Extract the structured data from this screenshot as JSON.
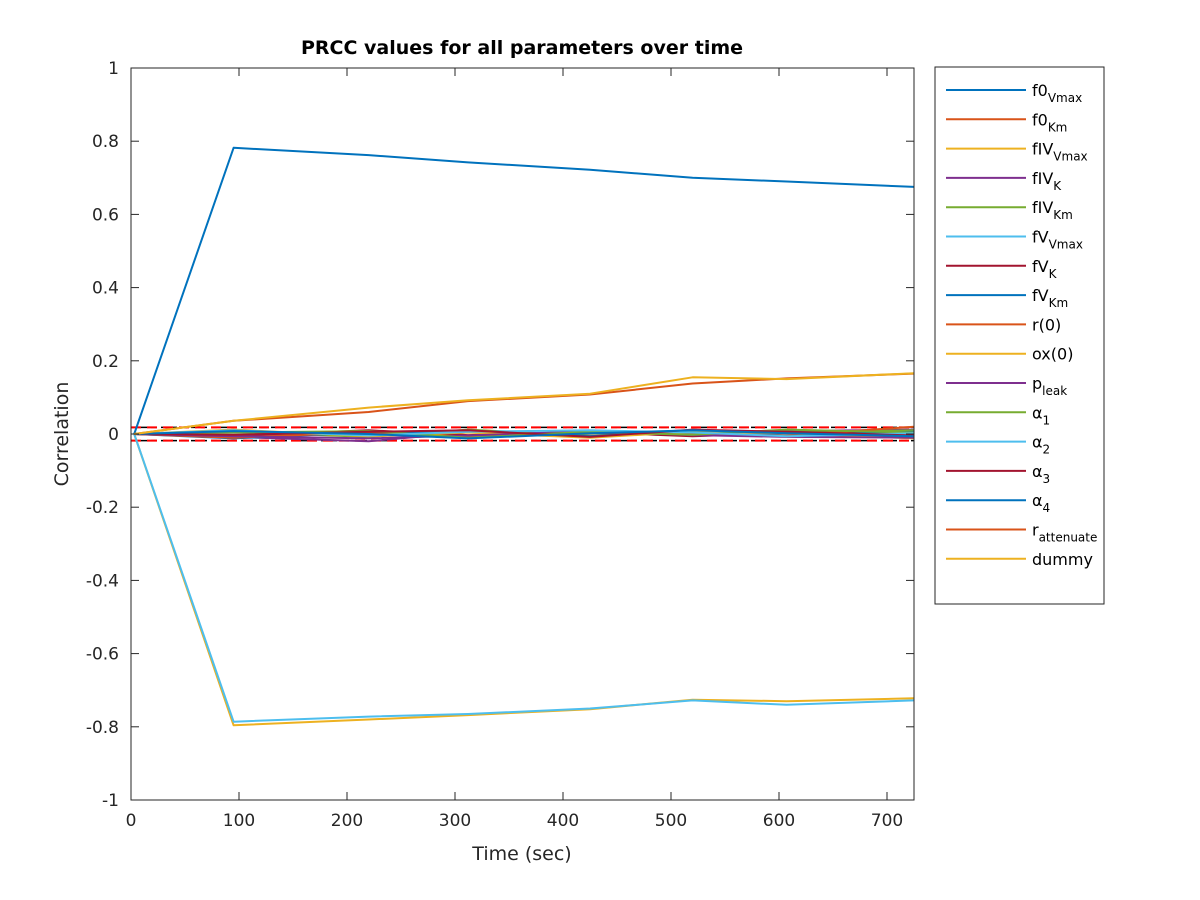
{
  "chart_data": {
    "type": "line",
    "title": "PRCC values for all parameters over time",
    "xlabel": "Time (sec)",
    "ylabel": "Correlation",
    "xlim": [
      0,
      725
    ],
    "ylim": [
      -1,
      1
    ],
    "xticks": [
      0,
      100,
      200,
      300,
      400,
      500,
      600,
      700
    ],
    "yticks": [
      -1,
      -0.8,
      -0.6,
      -0.4,
      -0.2,
      0,
      0.2,
      0.4,
      0.6,
      0.8,
      1
    ],
    "grid": false,
    "legend_position": "outside-right",
    "x": [
      3,
      95,
      220,
      312,
      425,
      520,
      607,
      725
    ],
    "series": [
      {
        "name": "f0",
        "sub": "Vmax",
        "color": "#0072BD",
        "values": [
          0,
          0.782,
          0.762,
          0.742,
          0.722,
          0.7,
          0.69,
          0.675
        ]
      },
      {
        "name": "f0",
        "sub": "Km",
        "color": "#D95319",
        "values": [
          0,
          -0.005,
          0.004,
          -0.006,
          0.003,
          -0.004,
          0.006,
          -0.008
        ]
      },
      {
        "name": "fIV",
        "sub": "Vmax",
        "color": "#EDB120",
        "values": [
          0,
          -0.796,
          -0.78,
          -0.768,
          -0.752,
          -0.726,
          -0.73,
          -0.722
        ]
      },
      {
        "name": "fIV",
        "sub": "K",
        "color": "#7E2F8E",
        "values": [
          0,
          -0.008,
          -0.02,
          0.005,
          -0.004,
          0.003,
          0.008,
          0.012
        ]
      },
      {
        "name": "fIV",
        "sub": "Km",
        "color": "#77AC30",
        "values": [
          0,
          0.006,
          -0.008,
          0.012,
          -0.005,
          0.008,
          0.004,
          0.01
        ]
      },
      {
        "name": "fV",
        "sub": "Vmax",
        "color": "#4DBEEE",
        "values": [
          0,
          -0.786,
          -0.772,
          -0.765,
          -0.75,
          -0.728,
          -0.74,
          -0.728
        ]
      },
      {
        "name": "fV",
        "sub": "K",
        "color": "#A2142F",
        "values": [
          0,
          -0.004,
          0.01,
          -0.003,
          0.005,
          -0.006,
          0.003,
          0.004
        ]
      },
      {
        "name": "fV",
        "sub": "Km",
        "color": "#0072BD",
        "values": [
          0,
          -0.012,
          0.004,
          0.008,
          -0.006,
          0.01,
          -0.004,
          0.006
        ]
      },
      {
        "name": "r(0)",
        "sub": "",
        "color": "#D95319",
        "values": [
          0,
          -0.01,
          0.005,
          -0.008,
          0.004,
          0.002,
          -0.005,
          0.02
        ]
      },
      {
        "name": "ox(0)",
        "sub": "",
        "color": "#EDB120",
        "values": [
          0,
          0.012,
          -0.006,
          0.004,
          -0.01,
          0.006,
          0.002,
          -0.012
        ]
      },
      {
        "name": "p",
        "sub": "leak",
        "color": "#7E2F8E",
        "values": [
          0,
          -0.006,
          -0.012,
          -0.004,
          0.008,
          -0.003,
          -0.008,
          -0.01
        ]
      },
      {
        "name": "α",
        "sub": "1",
        "color": "#77AC30",
        "values": [
          0,
          0.004,
          0.008,
          -0.01,
          0.006,
          -0.002,
          0.012,
          0.004
        ]
      },
      {
        "name": "α",
        "sub": "2",
        "color": "#4DBEEE",
        "values": [
          0,
          0.01,
          -0.004,
          0.006,
          0.01,
          0.004,
          -0.006,
          0.002
        ]
      },
      {
        "name": "α",
        "sub": "3",
        "color": "#A2142F",
        "values": [
          0,
          -0.002,
          0.006,
          0.01,
          -0.008,
          0.012,
          0.006,
          -0.004
        ]
      },
      {
        "name": "α",
        "sub": "4",
        "color": "#0072BD",
        "values": [
          0,
          0.008,
          0.0,
          -0.012,
          0.002,
          0.01,
          0.002,
          -0.006
        ]
      },
      {
        "name": "r",
        "sub": "attenuate",
        "color": "#D95319",
        "values": [
          0,
          0.036,
          0.06,
          0.09,
          0.108,
          0.138,
          0.152,
          0.165
        ]
      },
      {
        "name": "dummy",
        "sub": "",
        "color": "#EDB120",
        "values": [
          0,
          0.036,
          0.072,
          0.092,
          0.11,
          0.155,
          0.15,
          0.166
        ]
      }
    ],
    "reference_lines": [
      {
        "y": 0.018,
        "color": "#000000",
        "style": "dashed"
      },
      {
        "y": -0.018,
        "color": "#000000",
        "style": "dashed"
      },
      {
        "y": 0.018,
        "color": "#FF0000",
        "style": "dashed"
      },
      {
        "y": -0.018,
        "color": "#FF0000",
        "style": "dashed"
      }
    ]
  }
}
